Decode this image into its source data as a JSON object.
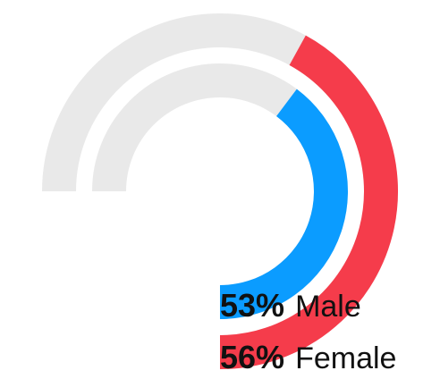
{
  "chart_data": {
    "type": "radial-bar",
    "series": [
      {
        "name": "Female",
        "value": 56,
        "unit": "%",
        "color": "#f53c4b",
        "track_color": "#e9e9e9"
      },
      {
        "name": "Male",
        "value": 53,
        "unit": "%",
        "color": "#0b9cff",
        "track_color": "#e9e9e9"
      }
    ],
    "scale_max": 100,
    "arc_span_degrees": 270,
    "labels": [
      {
        "pct": "53%",
        "name": "Male"
      },
      {
        "pct": "56%",
        "name": "Female"
      }
    ],
    "background": "#ffffff"
  }
}
